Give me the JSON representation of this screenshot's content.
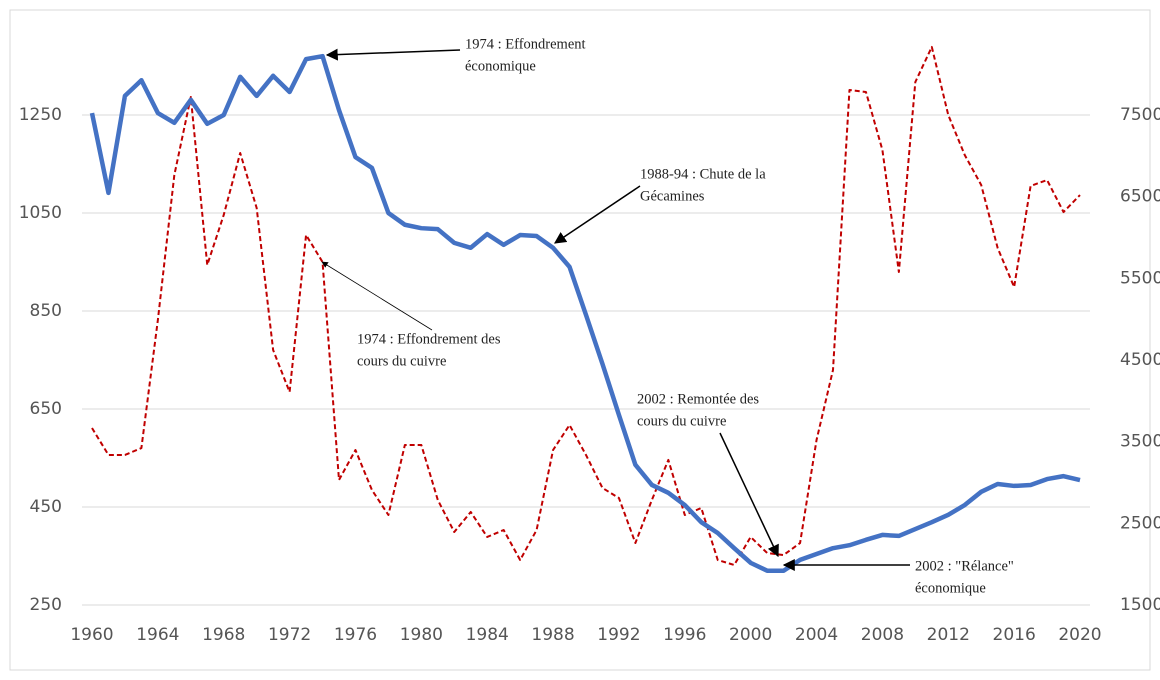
{
  "chart_data": {
    "type": "line",
    "x": [
      1960,
      1961,
      1962,
      1963,
      1964,
      1965,
      1966,
      1967,
      1968,
      1969,
      1970,
      1971,
      1972,
      1973,
      1974,
      1975,
      1976,
      1977,
      1978,
      1979,
      1980,
      1981,
      1982,
      1983,
      1984,
      1985,
      1986,
      1987,
      1988,
      1989,
      1990,
      1991,
      1992,
      1993,
      1994,
      1995,
      1996,
      1997,
      1998,
      1999,
      2000,
      2001,
      2002,
      2003,
      2004,
      2005,
      2006,
      2007,
      2008,
      2009,
      2010,
      2011,
      2012,
      2013,
      2014,
      2015,
      2016,
      2017,
      2018,
      2019,
      2020
    ],
    "xlim": [
      1960,
      2020
    ],
    "xticks": [
      1960,
      1964,
      1968,
      1972,
      1976,
      1980,
      1984,
      1988,
      1992,
      1996,
      2000,
      2004,
      2008,
      2012,
      2016,
      2020
    ],
    "ylim": [
      250,
      1450
    ],
    "yticks": [
      250,
      450,
      650,
      850,
      1050,
      1250
    ],
    "y2lim": [
      1500,
      8700
    ],
    "y2ticks": [
      1500,
      2500,
      3500,
      4500,
      5500,
      6500,
      7500
    ],
    "grid": true,
    "series": [
      {
        "color": "#4472c4",
        "values": [
          1254,
          1091,
          1289,
          1321,
          1254,
          1234,
          1281,
          1232,
          1250,
          1328,
          1289,
          1330,
          1297,
          1364,
          1370,
          1260,
          1164,
          1142,
          1050,
          1026,
          1019,
          1017,
          989,
          979,
          1007,
          985,
          1005,
          1003,
          979,
          940,
          842,
          742,
          638,
          536,
          495,
          479,
          454,
          419,
          397,
          366,
          336,
          320,
          320,
          342,
          354,
          366,
          372,
          383,
          393,
          391,
          405,
          419,
          434,
          454,
          481,
          497,
          493,
          495,
          507,
          513,
          505
        ]
      },
      {
        "color": "#c00000",
        "axis": "y2",
        "values": [
          3667,
          3337,
          3337,
          3422,
          4990,
          6765,
          7720,
          5663,
          6276,
          7035,
          6361,
          4622,
          4108,
          6031,
          5700,
          3031,
          3398,
          2908,
          2602,
          3459,
          3459,
          2786,
          2394,
          2639,
          2333,
          2418,
          2051,
          2418,
          3398,
          3704,
          3337,
          2933,
          2810,
          2259,
          2786,
          3276,
          2602,
          2688,
          2051,
          1990,
          2333,
          2137,
          2112,
          2259,
          3520,
          4378,
          7806,
          7782,
          7072,
          5578,
          7904,
          8333,
          7500,
          7010,
          6643,
          5871,
          5394,
          6631,
          6704,
          6312,
          6520
        ]
      }
    ],
    "annotations": [
      {
        "lines": [
          "1974 : Effondrement",
          "économique"
        ]
      },
      {
        "lines": [
          "1988-94 : Chute de la",
          "Gécamines"
        ]
      },
      {
        "lines": [
          "1974 : Effondrement des",
          "cours du cuivre"
        ]
      },
      {
        "lines": [
          "2002 : Remontée des",
          "cours du cuivre"
        ]
      },
      {
        "lines": [
          "2002 : \"Rélance\"",
          "économique"
        ]
      }
    ]
  }
}
